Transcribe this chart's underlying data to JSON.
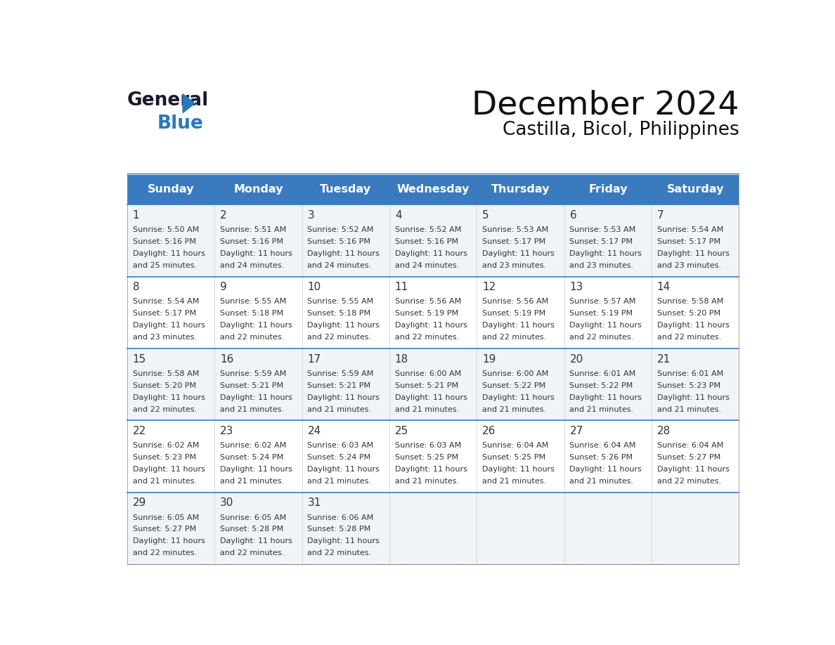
{
  "title": "December 2024",
  "subtitle": "Castilla, Bicol, Philippines",
  "header_color": "#3a7abf",
  "header_text_color": "#ffffff",
  "cell_bg_color": "#f0f4f8",
  "cell_bg_color2": "#ffffff",
  "border_color": "#3a7abf",
  "text_color": "#333333",
  "days_of_week": [
    "Sunday",
    "Monday",
    "Tuesday",
    "Wednesday",
    "Thursday",
    "Friday",
    "Saturday"
  ],
  "weeks": [
    [
      {
        "day": 1,
        "sunrise": "5:50 AM",
        "sunset": "5:16 PM",
        "daylight_hours": 11,
        "daylight_minutes": 25
      },
      {
        "day": 2,
        "sunrise": "5:51 AM",
        "sunset": "5:16 PM",
        "daylight_hours": 11,
        "daylight_minutes": 24
      },
      {
        "day": 3,
        "sunrise": "5:52 AM",
        "sunset": "5:16 PM",
        "daylight_hours": 11,
        "daylight_minutes": 24
      },
      {
        "day": 4,
        "sunrise": "5:52 AM",
        "sunset": "5:16 PM",
        "daylight_hours": 11,
        "daylight_minutes": 24
      },
      {
        "day": 5,
        "sunrise": "5:53 AM",
        "sunset": "5:17 PM",
        "daylight_hours": 11,
        "daylight_minutes": 23
      },
      {
        "day": 6,
        "sunrise": "5:53 AM",
        "sunset": "5:17 PM",
        "daylight_hours": 11,
        "daylight_minutes": 23
      },
      {
        "day": 7,
        "sunrise": "5:54 AM",
        "sunset": "5:17 PM",
        "daylight_hours": 11,
        "daylight_minutes": 23
      }
    ],
    [
      {
        "day": 8,
        "sunrise": "5:54 AM",
        "sunset": "5:17 PM",
        "daylight_hours": 11,
        "daylight_minutes": 23
      },
      {
        "day": 9,
        "sunrise": "5:55 AM",
        "sunset": "5:18 PM",
        "daylight_hours": 11,
        "daylight_minutes": 22
      },
      {
        "day": 10,
        "sunrise": "5:55 AM",
        "sunset": "5:18 PM",
        "daylight_hours": 11,
        "daylight_minutes": 22
      },
      {
        "day": 11,
        "sunrise": "5:56 AM",
        "sunset": "5:19 PM",
        "daylight_hours": 11,
        "daylight_minutes": 22
      },
      {
        "day": 12,
        "sunrise": "5:56 AM",
        "sunset": "5:19 PM",
        "daylight_hours": 11,
        "daylight_minutes": 22
      },
      {
        "day": 13,
        "sunrise": "5:57 AM",
        "sunset": "5:19 PM",
        "daylight_hours": 11,
        "daylight_minutes": 22
      },
      {
        "day": 14,
        "sunrise": "5:58 AM",
        "sunset": "5:20 PM",
        "daylight_hours": 11,
        "daylight_minutes": 22
      }
    ],
    [
      {
        "day": 15,
        "sunrise": "5:58 AM",
        "sunset": "5:20 PM",
        "daylight_hours": 11,
        "daylight_minutes": 22
      },
      {
        "day": 16,
        "sunrise": "5:59 AM",
        "sunset": "5:21 PM",
        "daylight_hours": 11,
        "daylight_minutes": 21
      },
      {
        "day": 17,
        "sunrise": "5:59 AM",
        "sunset": "5:21 PM",
        "daylight_hours": 11,
        "daylight_minutes": 21
      },
      {
        "day": 18,
        "sunrise": "6:00 AM",
        "sunset": "5:21 PM",
        "daylight_hours": 11,
        "daylight_minutes": 21
      },
      {
        "day": 19,
        "sunrise": "6:00 AM",
        "sunset": "5:22 PM",
        "daylight_hours": 11,
        "daylight_minutes": 21
      },
      {
        "day": 20,
        "sunrise": "6:01 AM",
        "sunset": "5:22 PM",
        "daylight_hours": 11,
        "daylight_minutes": 21
      },
      {
        "day": 21,
        "sunrise": "6:01 AM",
        "sunset": "5:23 PM",
        "daylight_hours": 11,
        "daylight_minutes": 21
      }
    ],
    [
      {
        "day": 22,
        "sunrise": "6:02 AM",
        "sunset": "5:23 PM",
        "daylight_hours": 11,
        "daylight_minutes": 21
      },
      {
        "day": 23,
        "sunrise": "6:02 AM",
        "sunset": "5:24 PM",
        "daylight_hours": 11,
        "daylight_minutes": 21
      },
      {
        "day": 24,
        "sunrise": "6:03 AM",
        "sunset": "5:24 PM",
        "daylight_hours": 11,
        "daylight_minutes": 21
      },
      {
        "day": 25,
        "sunrise": "6:03 AM",
        "sunset": "5:25 PM",
        "daylight_hours": 11,
        "daylight_minutes": 21
      },
      {
        "day": 26,
        "sunrise": "6:04 AM",
        "sunset": "5:25 PM",
        "daylight_hours": 11,
        "daylight_minutes": 21
      },
      {
        "day": 27,
        "sunrise": "6:04 AM",
        "sunset": "5:26 PM",
        "daylight_hours": 11,
        "daylight_minutes": 21
      },
      {
        "day": 28,
        "sunrise": "6:04 AM",
        "sunset": "5:27 PM",
        "daylight_hours": 11,
        "daylight_minutes": 22
      }
    ],
    [
      {
        "day": 29,
        "sunrise": "6:05 AM",
        "sunset": "5:27 PM",
        "daylight_hours": 11,
        "daylight_minutes": 22
      },
      {
        "day": 30,
        "sunrise": "6:05 AM",
        "sunset": "5:28 PM",
        "daylight_hours": 11,
        "daylight_minutes": 22
      },
      {
        "day": 31,
        "sunrise": "6:06 AM",
        "sunset": "5:28 PM",
        "daylight_hours": 11,
        "daylight_minutes": 22
      },
      null,
      null,
      null,
      null
    ]
  ],
  "logo_color1": "#1a1a2e",
  "logo_color2": "#2878be"
}
